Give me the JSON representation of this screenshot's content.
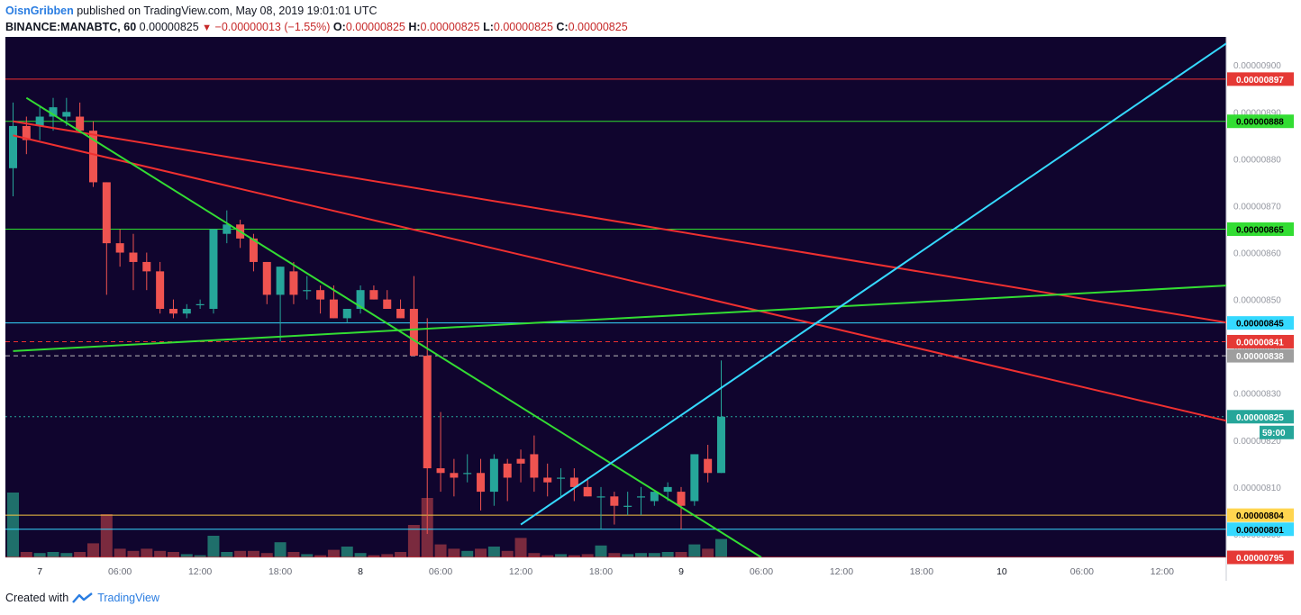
{
  "header": {
    "author": "OisnGribben",
    "published_text": "published on TradingView.com, May 08, 2019 19:01:01 UTC"
  },
  "ohlc": {
    "symbol": "BINANCE:MANABTC, 60",
    "last": "0.00000825",
    "change": "−0.00000013 (−1.55%)",
    "o_label": "O:",
    "o": "0.00000825",
    "h_label": "H:",
    "h": "0.00000825",
    "l_label": "L:",
    "l": "0.00000825",
    "c_label": "C:",
    "c": "0.00000825"
  },
  "footer": {
    "created_with": "Created with",
    "brand": "TradingView"
  },
  "colors": {
    "background": "#10052e",
    "up": "#26a69a",
    "down": "#ef5350",
    "volume_up": "#1f6f6b",
    "volume_down": "#7a2a3e"
  },
  "chart_data": {
    "type": "candlestick",
    "ylim": [
      7.95e-06,
      9.06e-06
    ],
    "y_ticks": [
      "0.00000900",
      "0.00000890",
      "0.00000880",
      "0.00000870",
      "0.00000860",
      "0.00000850",
      "0.00000840",
      "0.00000830",
      "0.00000820",
      "0.00000810",
      "0.00000800"
    ],
    "x_ticks": [
      "7",
      "06:00",
      "12:00",
      "18:00",
      "8",
      "06:00",
      "12:00",
      "18:00",
      "9",
      "06:00",
      "12:00",
      "18:00",
      "10",
      "06:00",
      "12:00"
    ],
    "time_start": "2019-05-06 22:00 UTC",
    "candles_hourly_ohlc": [
      [
        878,
        892,
        872,
        887
      ],
      [
        887,
        889,
        881,
        884
      ],
      [
        887,
        891,
        884,
        889
      ],
      [
        889,
        893,
        886,
        891
      ],
      [
        889,
        893,
        887,
        890
      ],
      [
        889,
        892,
        886,
        886
      ],
      [
        886,
        888,
        874,
        875
      ],
      [
        875,
        875,
        851,
        862
      ],
      [
        862,
        865,
        857,
        860
      ],
      [
        860,
        864,
        852,
        858
      ],
      [
        858,
        860,
        852,
        856
      ],
      [
        856,
        858,
        847,
        848
      ],
      [
        848,
        850,
        846,
        847
      ],
      [
        847,
        849,
        846,
        848
      ],
      [
        849,
        850,
        848,
        849
      ],
      [
        848,
        865,
        847,
        865
      ],
      [
        864,
        869,
        862,
        866
      ],
      [
        866,
        867,
        861,
        863
      ],
      [
        863,
        864,
        856,
        858
      ],
      [
        858,
        858,
        849,
        851
      ],
      [
        851,
        857,
        841,
        857
      ],
      [
        856,
        858,
        849,
        851
      ],
      [
        852,
        855,
        850,
        852
      ],
      [
        852,
        853,
        847,
        850
      ],
      [
        850,
        853,
        846,
        846
      ],
      [
        846,
        848,
        845,
        848
      ],
      [
        848,
        853,
        847,
        852
      ],
      [
        852,
        853,
        850,
        850
      ],
      [
        850,
        852,
        848,
        848
      ],
      [
        848,
        850,
        846,
        846
      ],
      [
        848,
        855,
        838,
        838
      ],
      [
        838,
        846,
        800,
        814
      ],
      [
        814,
        826,
        809,
        813
      ],
      [
        813,
        816,
        808,
        812
      ],
      [
        813,
        817,
        811,
        813
      ],
      [
        813,
        816,
        805,
        809
      ],
      [
        809,
        817,
        806,
        816
      ],
      [
        815,
        816,
        807,
        812
      ],
      [
        816,
        818,
        811,
        815
      ],
      [
        817,
        821,
        809,
        812
      ],
      [
        812,
        815,
        808,
        811
      ],
      [
        812,
        814,
        808,
        812
      ],
      [
        812,
        814,
        807,
        810
      ],
      [
        810,
        812,
        808,
        808
      ],
      [
        808,
        810,
        801,
        808
      ],
      [
        808,
        809,
        802,
        806
      ],
      [
        806,
        809,
        804,
        806
      ],
      [
        808,
        810,
        804,
        808
      ],
      [
        807,
        809,
        806,
        809
      ],
      [
        809,
        811,
        807,
        810
      ],
      [
        809,
        810,
        801,
        806
      ],
      [
        807,
        817,
        806,
        817
      ],
      [
        816,
        819,
        811,
        813
      ],
      [
        813,
        837,
        813,
        825
      ]
    ],
    "volume_relative": [
      0.6,
      0.05,
      0.04,
      0.05,
      0.04,
      0.05,
      0.13,
      0.4,
      0.08,
      0.06,
      0.08,
      0.06,
      0.05,
      0.03,
      0.02,
      0.2,
      0.05,
      0.06,
      0.06,
      0.04,
      0.14,
      0.05,
      0.03,
      0.02,
      0.07,
      0.1,
      0.04,
      0.02,
      0.03,
      0.05,
      0.3,
      0.55,
      0.12,
      0.08,
      0.06,
      0.08,
      0.1,
      0.06,
      0.18,
      0.04,
      0.02,
      0.03,
      0.02,
      0.03,
      0.11,
      0.04,
      0.03,
      0.04,
      0.04,
      0.05,
      0.05,
      0.12,
      0.08,
      0.17
    ],
    "horizontal_levels": [
      {
        "value": "0.00000897",
        "color": "#ef3030",
        "style": "solid",
        "label_bg": "#e53935"
      },
      {
        "value": "0.00000888",
        "color": "#2ee02e",
        "style": "solid",
        "label_bg": "#33dd33"
      },
      {
        "value": "0.00000865",
        "color": "#2ee02e",
        "style": "solid",
        "label_bg": "#33dd33"
      },
      {
        "value": "0.00000845",
        "color": "#35d9ff",
        "style": "solid",
        "label_bg": "#35d9ff"
      },
      {
        "value": "0.00000841",
        "color": "#ef3030",
        "style": "dashed",
        "label_bg": "#e53935"
      },
      {
        "value": "0.00000838",
        "color": "#bbbbbb",
        "style": "dashed",
        "label_bg": "#9e9e9e"
      },
      {
        "value": "0.00000825",
        "color": "#26a69a",
        "style": "dotted",
        "label_bg": "#26a69a",
        "sub_label": "59:00"
      },
      {
        "value": "0.00000804",
        "color": "#f5c542",
        "style": "solid",
        "label_bg": "#ffd54f"
      },
      {
        "value": "0.00000801",
        "color": "#35d9ff",
        "style": "solid",
        "label_bg": "#35d9ff"
      },
      {
        "value": "0.00000795",
        "color": "#ef3030",
        "style": "solid",
        "label_bg": "#e53935"
      }
    ],
    "trendlines": [
      {
        "color": "#ef3030",
        "from": [
          "2019-05-06 22:00",
          "0.00000888"
        ],
        "to": [
          "2019-05-10 17:00",
          "0.00000845"
        ]
      },
      {
        "color": "#ef3030",
        "from": [
          "2019-05-06 22:00",
          "0.00000885"
        ],
        "to": [
          "2019-05-10 17:00",
          "0.00000824"
        ]
      },
      {
        "color": "#33dd33",
        "from": [
          "2019-05-06 23:00",
          "0.00000893"
        ],
        "to": [
          "2019-05-09 06:00",
          "0.00000795"
        ]
      },
      {
        "color": "#33dd33",
        "from": [
          "2019-05-06 22:00",
          "0.00000839"
        ],
        "to": [
          "2019-05-10 17:00",
          "0.00000853"
        ]
      },
      {
        "color": "#35d9ff",
        "from": [
          "2019-05-08 12:00",
          "0.00000802"
        ],
        "to": [
          "2019-05-10 17:00",
          "0.00000905"
        ]
      }
    ]
  }
}
